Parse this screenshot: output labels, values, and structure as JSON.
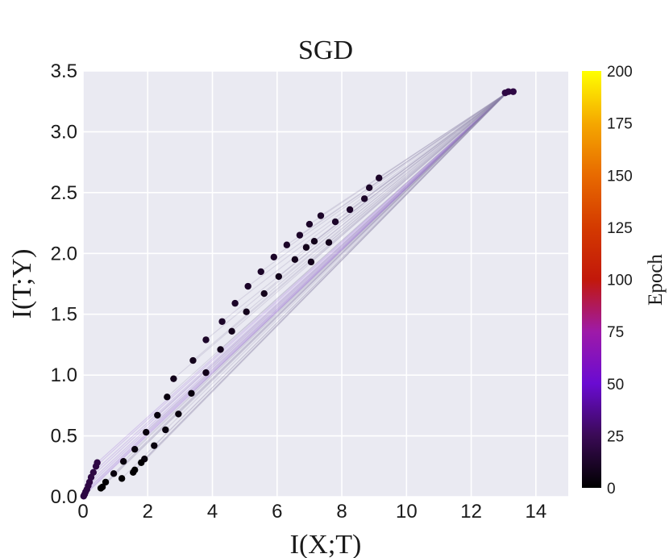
{
  "chart_data": {
    "type": "scatter",
    "title": "SGD",
    "xlabel": "I(X;T)",
    "ylabel": "I(T;Y)",
    "xlim": [
      0,
      15
    ],
    "ylim": [
      0,
      3.5
    ],
    "xticks": [
      0,
      2,
      4,
      6,
      8,
      10,
      12,
      14
    ],
    "yticks": [
      0.0,
      0.5,
      1.0,
      1.5,
      2.0,
      2.5,
      3.0,
      3.5
    ],
    "xtick_labels": [
      "0",
      "2",
      "4",
      "6",
      "8",
      "10",
      "12",
      "14"
    ],
    "ytick_labels": [
      "0.0",
      "0.5",
      "1.0",
      "1.5",
      "2.0",
      "2.5",
      "3.0",
      "3.5"
    ],
    "grid": true,
    "colorbar": {
      "label": "Epoch",
      "colormap": "gnuplot",
      "range": [
        0,
        200
      ],
      "ticks": [
        0,
        25,
        50,
        75,
        100,
        125,
        150,
        175,
        200
      ],
      "tick_labels": [
        "0",
        "25",
        "50",
        "75",
        "100",
        "125",
        "150",
        "175",
        "200"
      ]
    },
    "endpoint": {
      "x": 13.1,
      "y": 3.32
    },
    "series": [
      {
        "epoch": 20,
        "points": [
          [
            0.02,
            0.005
          ],
          [
            0.05,
            0.02
          ],
          [
            0.08,
            0.04
          ],
          [
            0.12,
            0.06
          ],
          [
            0.16,
            0.09
          ],
          [
            0.2,
            0.12
          ],
          [
            0.25,
            0.16
          ],
          [
            0.32,
            0.2
          ],
          [
            0.4,
            0.25
          ],
          [
            0.44,
            0.28
          ],
          [
            13.05,
            3.32
          ],
          [
            13.15,
            3.33
          ],
          [
            13.3,
            3.33
          ]
        ]
      },
      {
        "epoch": 12,
        "points": [
          [
            3.8,
            1.29
          ],
          [
            4.3,
            1.44
          ],
          [
            4.7,
            1.59
          ],
          [
            5.1,
            1.73
          ],
          [
            5.5,
            1.85
          ],
          [
            5.9,
            1.97
          ],
          [
            6.3,
            2.07
          ],
          [
            6.7,
            2.15
          ],
          [
            7.0,
            2.24
          ],
          [
            7.35,
            2.31
          ],
          [
            7.8,
            2.26
          ],
          [
            8.25,
            2.36
          ],
          [
            8.7,
            2.45
          ],
          [
            8.85,
            2.54
          ],
          [
            9.15,
            2.62
          ]
        ]
      },
      {
        "epoch": 8,
        "points": [
          [
            2.8,
            0.97
          ],
          [
            3.4,
            1.12
          ],
          [
            3.8,
            1.02
          ],
          [
            4.25,
            1.21
          ],
          [
            4.6,
            1.36
          ],
          [
            5.05,
            1.52
          ],
          [
            5.6,
            1.67
          ],
          [
            6.05,
            1.81
          ],
          [
            6.55,
            1.95
          ],
          [
            6.9,
            2.05
          ],
          [
            7.05,
            1.93
          ],
          [
            7.15,
            2.1
          ],
          [
            7.6,
            2.09
          ]
        ]
      },
      {
        "epoch": 4,
        "points": [
          [
            1.95,
            0.53
          ],
          [
            2.3,
            0.67
          ],
          [
            2.6,
            0.82
          ],
          [
            3.35,
            0.85
          ],
          [
            2.55,
            0.55
          ],
          [
            2.95,
            0.68
          ],
          [
            2.2,
            0.42
          ],
          [
            1.9,
            0.31
          ],
          [
            1.6,
            0.39
          ],
          [
            1.25,
            0.29
          ],
          [
            0.95,
            0.19
          ]
        ]
      },
      {
        "epoch": 1,
        "points": [
          [
            0.7,
            0.12
          ],
          [
            0.55,
            0.07
          ],
          [
            0.6,
            0.08
          ],
          [
            1.6,
            0.22
          ],
          [
            1.55,
            0.2
          ],
          [
            1.2,
            0.15
          ],
          [
            1.8,
            0.28
          ]
        ]
      }
    ]
  }
}
